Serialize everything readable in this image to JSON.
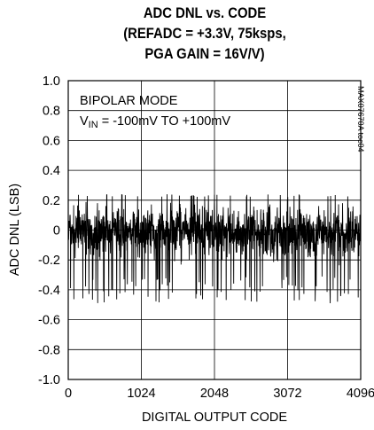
{
  "chart_data": {
    "type": "line",
    "title_lines": [
      "ADC DNL vs. CODE",
      "(REFADC = +3.3V, 75ksps,",
      "PGA GAIN = 16V/V)"
    ],
    "xlabel": "DIGITAL OUTPUT CODE",
    "ylabel": "ADC DNL (LSB)",
    "xlim": [
      0,
      4096
    ],
    "ylim": [
      -1.0,
      1.0
    ],
    "x_ticks": [
      "0",
      "1024",
      "2048",
      "3072",
      "4096"
    ],
    "y_ticks": [
      "1.0",
      "0.8",
      "0.6",
      "0.4",
      "0.2",
      "0",
      "-0.2",
      "-0.4",
      "-0.6",
      "-0.8",
      "-1.0"
    ],
    "grid": true,
    "annotations": {
      "mode": "BIPOLAR MODE",
      "vin_prefix": "V",
      "vin_sub": "IN",
      "vin_suffix": " = -100mV TO +100mV"
    },
    "figure_code": "MAX07670A toc04",
    "series": [
      {
        "description": "DNL per code, noise band",
        "band_min": -0.25,
        "band_max": 0.22,
        "spike_min": -0.49,
        "spike_max": 0.24
      }
    ]
  }
}
